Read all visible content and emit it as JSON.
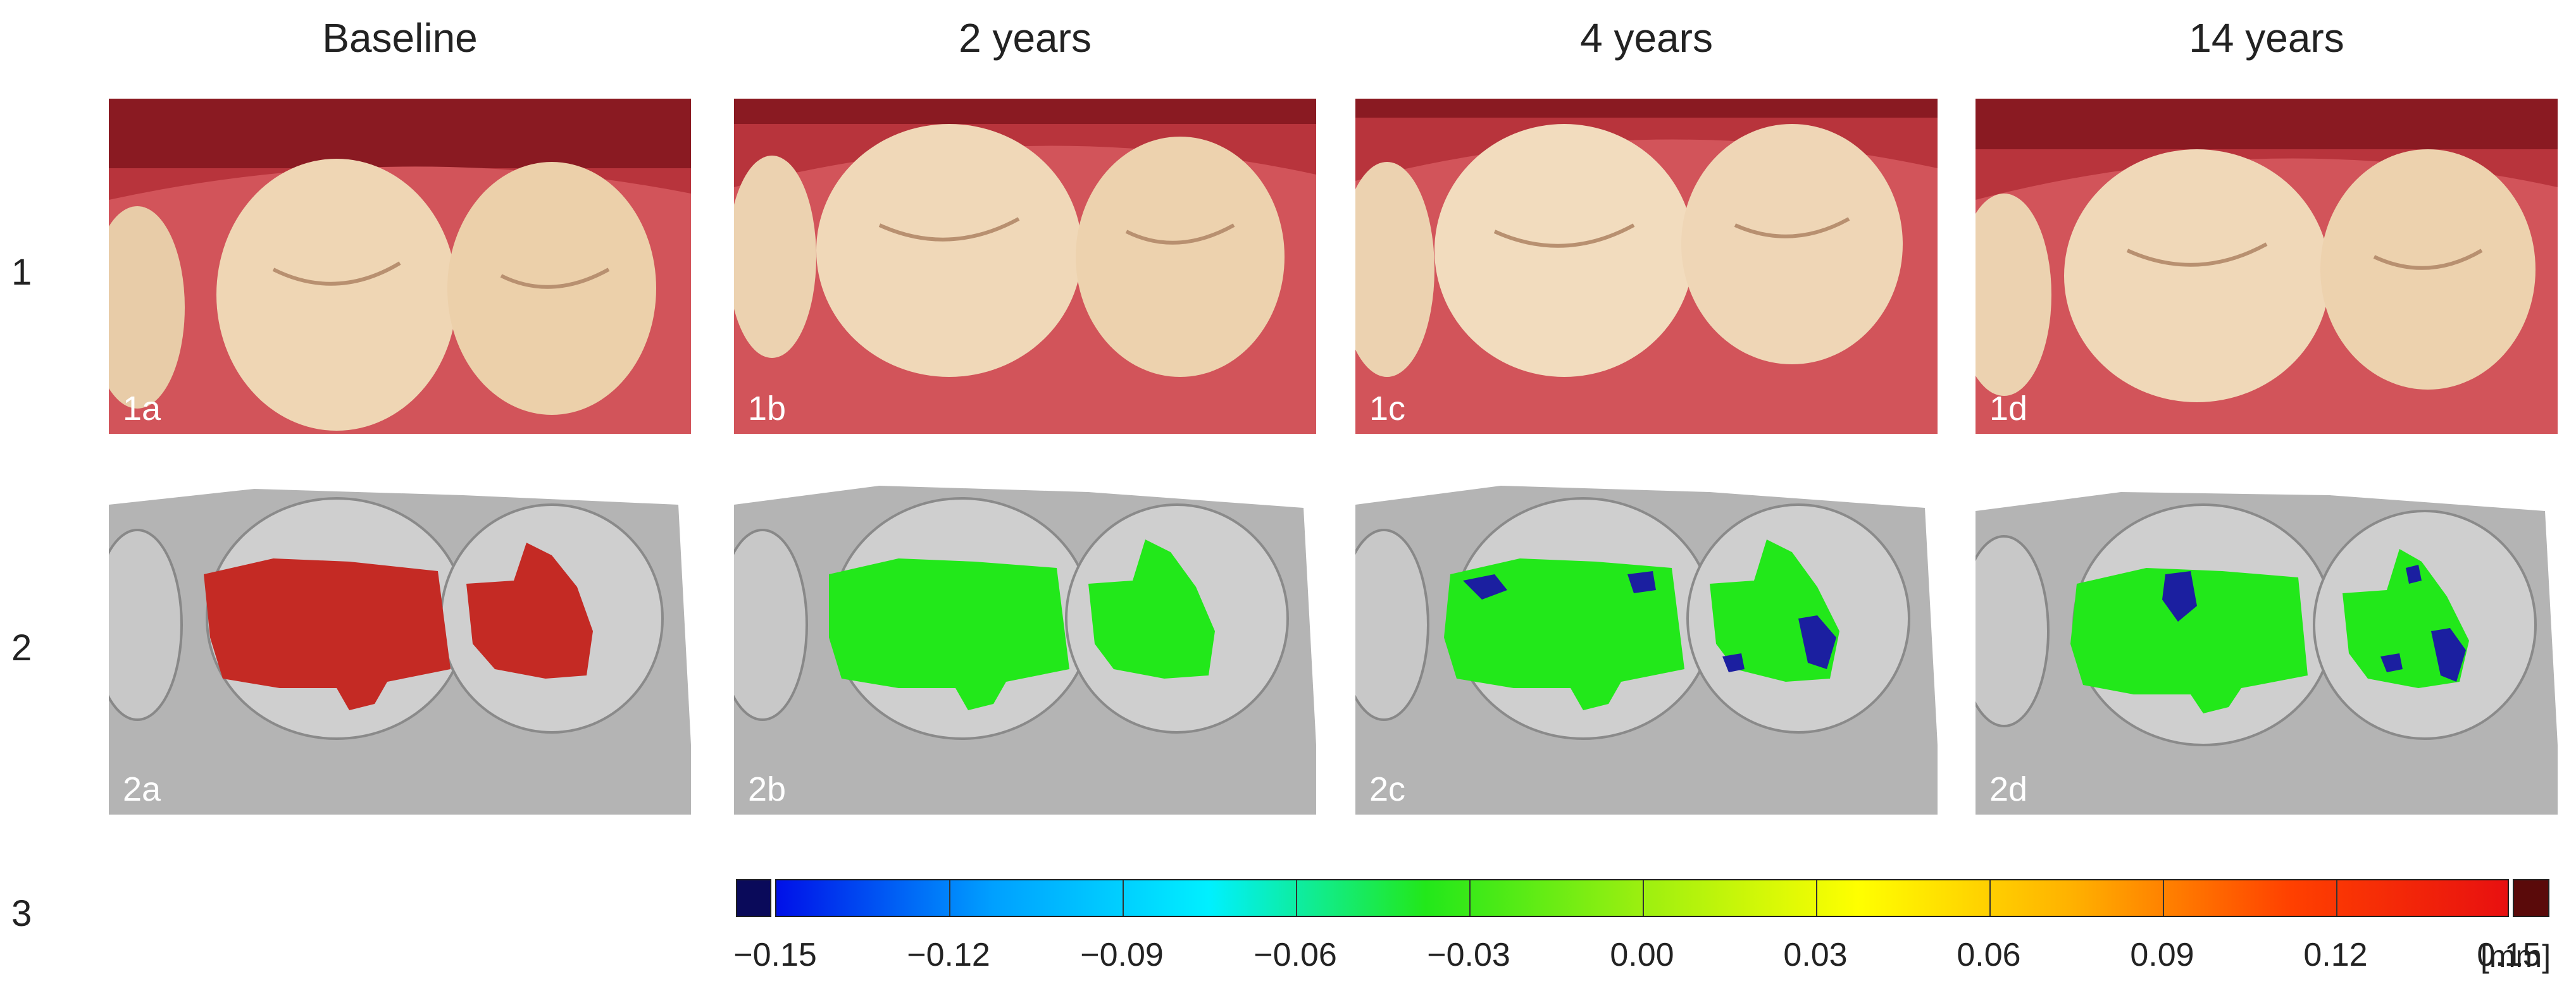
{
  "columns": [
    {
      "header": "Baseline",
      "photo_label": "1a",
      "scan_label": "2a",
      "scan_fill": "#c42a24"
    },
    {
      "header": "2 years",
      "photo_label": "1b",
      "scan_label": "2b",
      "scan_fill": "#22e81a"
    },
    {
      "header": "4 years",
      "photo_label": "1c",
      "scan_label": "2c",
      "scan_fill": "#22e81a"
    },
    {
      "header": "14 years",
      "photo_label": "1d",
      "scan_label": "2d",
      "scan_fill": "#22e81a"
    }
  ],
  "rows": [
    "1",
    "2",
    "3"
  ],
  "colorbar": {
    "ticks": [
      "−0.15",
      "−0.12",
      "−0.09",
      "−0.06",
      "−0.03",
      "0.00",
      "0.03",
      "0.06",
      "0.09",
      "0.12",
      "0.15"
    ],
    "unit": "[mm]",
    "under_color": "#0a0a5a",
    "over_color": "#5a0a0a",
    "gradient_colors": [
      "#0010e8",
      "#00a0ff",
      "#00f0ff",
      "#22e81a",
      "#9cef10",
      "#ffff00",
      "#ffb000",
      "#ff4000",
      "#e81010"
    ]
  },
  "colors": {
    "gum": "#c8444a",
    "tooth": "#efd3b0",
    "scan_gray": "#b4b4b4",
    "deviation_blue": "#1b1fa0"
  }
}
